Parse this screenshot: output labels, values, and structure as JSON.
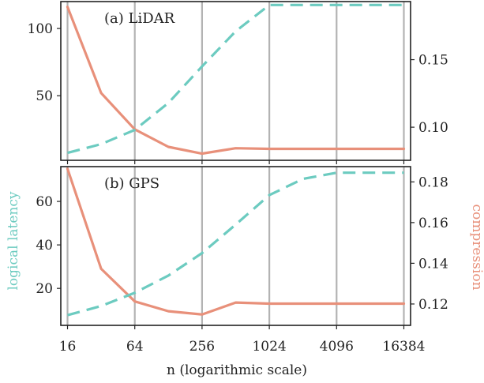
{
  "chart_data": {
    "type": "line",
    "xlabel": "n (logarithmic scale)",
    "x_scale": "log2",
    "x": [
      16,
      32,
      64,
      128,
      256,
      512,
      1024,
      2048,
      4096,
      8192,
      16384
    ],
    "x_ticks": [
      "16",
      "64",
      "256",
      "1024",
      "4096",
      "16384"
    ],
    "left_axis_label": "logical latency",
    "right_axis_label": "compression",
    "colors": {
      "latency": "#6ccbc0",
      "compression": "#e8907a"
    },
    "grid": "vertical lines at x ticks",
    "panels": [
      {
        "title": "(a) LiDAR",
        "left_ylim": [
          2,
          120
        ],
        "left_ticks": [
          "50",
          "100"
        ],
        "right_ylim": [
          0.0755,
          0.193
        ],
        "right_ticks": [
          "0.10",
          "0.15"
        ],
        "series": [
          {
            "axis": "left",
            "style": "solid",
            "values": [
              116,
              52,
              25,
              12,
              7,
              11,
              10.5,
              10.5,
              10.5,
              10.5,
              10.5
            ]
          },
          {
            "axis": "right",
            "style": "dashed",
            "values": [
              0.081,
              0.0875,
              0.098,
              0.118,
              0.145,
              0.171,
              0.1905,
              0.1905,
              0.1905,
              0.1905,
              0.1905
            ]
          }
        ]
      },
      {
        "title": "(b) GPS",
        "left_ylim": [
          3,
          76
        ],
        "left_ticks": [
          "20",
          "40",
          "60"
        ],
        "right_ylim": [
          0.1095,
          0.1875
        ],
        "right_ticks": [
          "0.12",
          "0.14",
          "0.16",
          "0.18"
        ],
        "series": [
          {
            "axis": "left",
            "style": "solid",
            "values": [
              75,
              29,
              14,
              9.5,
              8,
              13.5,
              13,
              13,
              13,
              13,
              13
            ]
          },
          {
            "axis": "right",
            "style": "dashed",
            "values": [
              0.1145,
              0.119,
              0.1255,
              0.134,
              0.145,
              0.159,
              0.1735,
              0.1815,
              0.1845,
              0.1845,
              0.1845
            ]
          }
        ]
      }
    ]
  }
}
